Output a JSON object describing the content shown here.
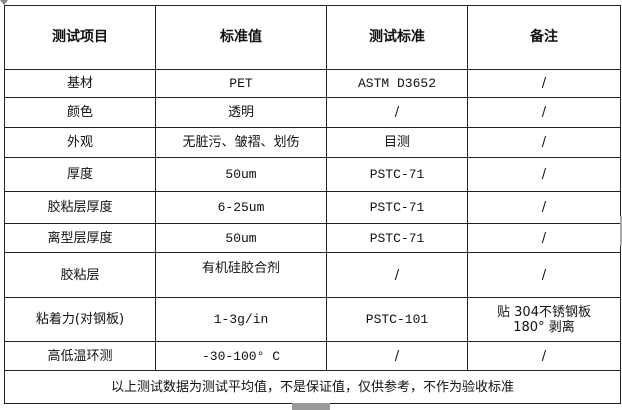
{
  "headers": [
    "测试项目",
    "标准值",
    "测试标准",
    "备注"
  ],
  "rows": [
    [
      "基材",
      "PET",
      "ASTM D3652",
      "/"
    ],
    [
      "颜色",
      "透明",
      "/",
      "/"
    ],
    [
      "外观",
      "无脏污、皱褶、划伤",
      "目测",
      "/"
    ],
    [
      "厚度",
      "50um",
      "PSTC-71",
      "/"
    ],
    [
      "胶粘层厚度",
      "6-25um",
      "PSTC-71",
      "/"
    ],
    [
      "离型层厚度",
      "50um",
      "PSTC-71",
      "/"
    ],
    [
      "胶粘层",
      "有机硅胶合剂",
      "/",
      "/"
    ],
    [
      "粘着力(对钢板)",
      "1-3g/in",
      "PSTC-101",
      "贴 304不锈钢板 180° 剥离"
    ],
    [
      "高低温环测",
      "-30-100° C",
      "/",
      "/"
    ]
  ],
  "footer": "以上测试数据为测试平均值，不是保证值，仅供参考，不作为验收标准"
}
